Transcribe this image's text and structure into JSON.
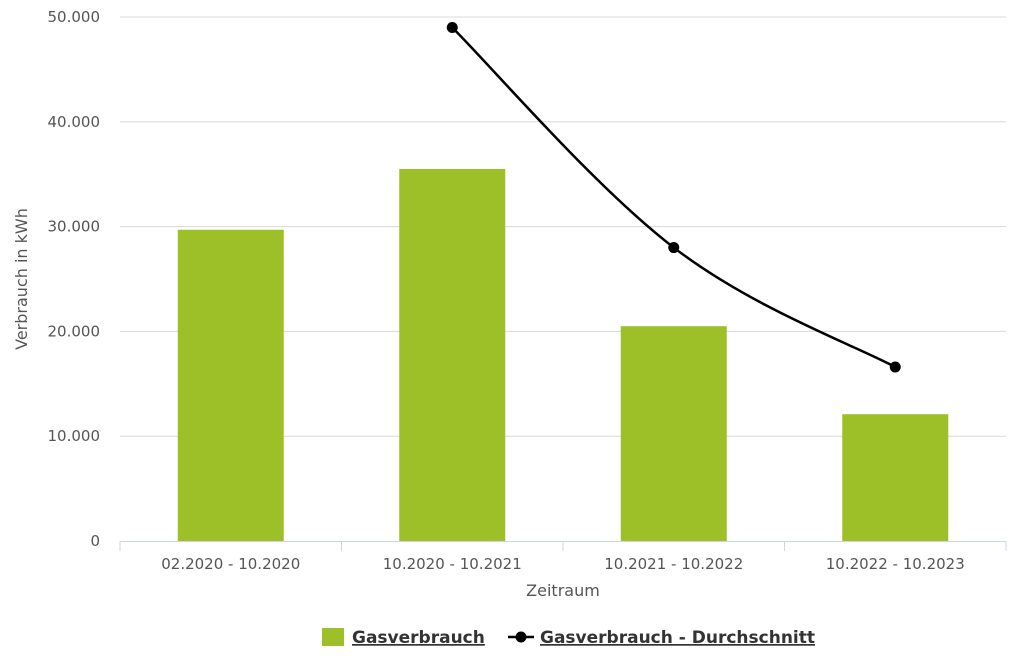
{
  "chart_data": {
    "type": "bar",
    "categories": [
      "02.2020 - 10.2020",
      "10.2020 - 10.2021",
      "10.2021 - 10.2022",
      "10.2022 - 10.2023"
    ],
    "series": [
      {
        "name": "Gasverbrauch",
        "type": "bar",
        "color": "#9dbf28",
        "values": [
          29700,
          35500,
          20500,
          12100
        ]
      },
      {
        "name": "Gasverbrauch - Durchschnitt",
        "type": "line",
        "color": "#000000",
        "values": [
          null,
          49000,
          28000,
          16600
        ]
      }
    ],
    "xlabel": "Zeitraum",
    "ylabel": "Verbrauch in kWh",
    "ylim": [
      0,
      50000
    ],
    "yticks": [
      "0",
      "10.000",
      "20.000",
      "30.000",
      "40.000",
      "50.000"
    ],
    "grid": true,
    "legend": "bottom-center"
  }
}
